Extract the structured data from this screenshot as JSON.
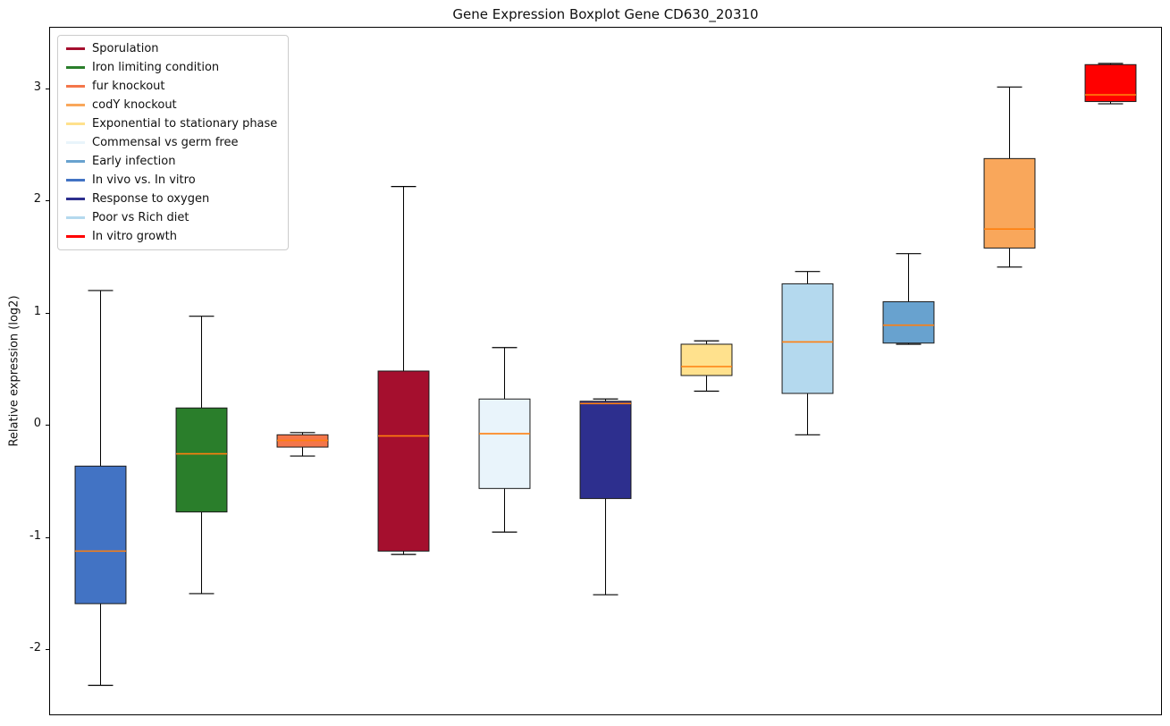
{
  "chart_data": {
    "type": "boxplot",
    "title": "Gene Expression Boxplot Gene CD630_20310",
    "ylabel": "Relative expression (log2)",
    "xlabel": "",
    "ylim": [
      -2.59,
      3.55
    ],
    "yticks": [
      -2,
      -1,
      0,
      1,
      2,
      3
    ],
    "grid": false,
    "legend_position": "upper left",
    "median_color": "#ff7f0e",
    "box_edge_color": "#1a1a1a",
    "whisker_color": "#000000",
    "legend": [
      {
        "label": "Sporulation",
        "color": "#a50f2e"
      },
      {
        "label": "Iron limiting condition",
        "color": "#2a7e2b"
      },
      {
        "label": "fur knockout",
        "color": "#f4764a"
      },
      {
        "label": "codY knockout",
        "color": "#f9a75b"
      },
      {
        "label": "Exponential to stationary phase",
        "color": "#ffe18d"
      },
      {
        "label": "Commensal vs germ free",
        "color": "#e9f4fb"
      },
      {
        "label": "Early infection",
        "color": "#68a2cf"
      },
      {
        "label": "In vivo vs. In vitro",
        "color": "#4273c4"
      },
      {
        "label": "Response to oxygen",
        "color": "#2d2f8e"
      },
      {
        "label": "Poor vs Rich diet",
        "color": "#b4d9ee"
      },
      {
        "label": "In vitro growth",
        "color": "#ff0000"
      }
    ],
    "boxes": [
      {
        "label": "In vivo vs. In vitro",
        "whisker_low": -2.33,
        "q1": -1.6,
        "median": -1.13,
        "q3": -0.37,
        "whisker_high": 1.2
      },
      {
        "label": "Iron limiting condition",
        "whisker_low": -1.51,
        "q1": -0.78,
        "median": -0.26,
        "q3": 0.15,
        "whisker_high": 0.97
      },
      {
        "label": "fur knockout",
        "whisker_low": -0.28,
        "q1": -0.2,
        "median": -0.14,
        "q3": -0.09,
        "whisker_high": -0.07
      },
      {
        "label": "Sporulation",
        "whisker_low": -1.16,
        "q1": -1.13,
        "median": -0.1,
        "q3": 0.48,
        "whisker_high": 2.13
      },
      {
        "label": "Commensal vs germ free",
        "whisker_low": -0.96,
        "q1": -0.57,
        "median": -0.08,
        "q3": 0.23,
        "whisker_high": 0.69
      },
      {
        "label": "Response to oxygen",
        "whisker_low": -1.52,
        "q1": -0.66,
        "median": 0.19,
        "q3": 0.21,
        "whisker_high": 0.23
      },
      {
        "label": "Exponential to stationary phase",
        "whisker_low": 0.3,
        "q1": 0.44,
        "median": 0.52,
        "q3": 0.72,
        "whisker_high": 0.75
      },
      {
        "label": "Poor vs Rich diet",
        "whisker_low": -0.09,
        "q1": 0.28,
        "median": 0.74,
        "q3": 1.26,
        "whisker_high": 1.37
      },
      {
        "label": "Early infection",
        "whisker_low": 0.72,
        "q1": 0.73,
        "median": 0.89,
        "q3": 1.1,
        "whisker_high": 1.53
      },
      {
        "label": "codY knockout",
        "whisker_low": 1.41,
        "q1": 1.58,
        "median": 1.75,
        "q3": 2.38,
        "whisker_high": 3.02
      },
      {
        "label": "In vitro growth",
        "whisker_low": 2.87,
        "q1": 2.89,
        "median": 2.95,
        "q3": 3.22,
        "whisker_high": 3.23
      }
    ]
  }
}
